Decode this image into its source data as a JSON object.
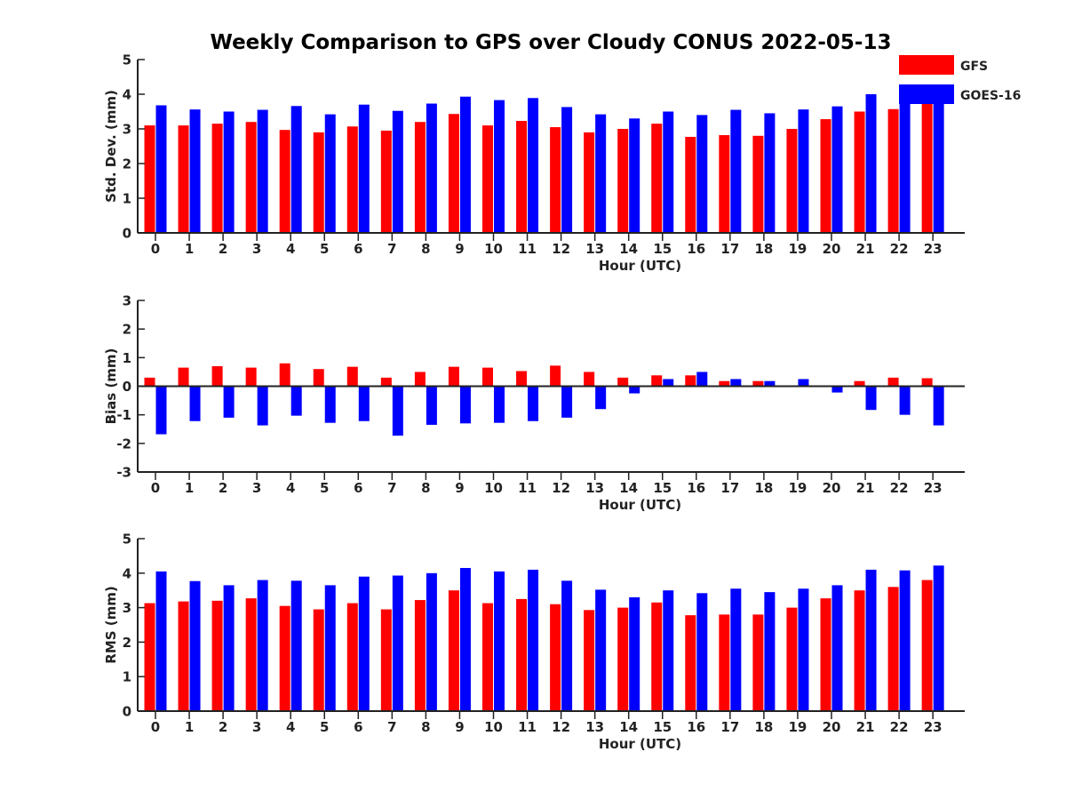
{
  "title": "Weekly Comparison to GPS over Cloudy CONUS 2022-05-13",
  "colors": {
    "gfs": "#ff0000",
    "goes": "#0000ff",
    "axis": "#222222"
  },
  "legend": {
    "placement": "top-right",
    "entries": [
      "GFS",
      "GOES-16"
    ]
  },
  "chart_data": [
    {
      "type": "bar",
      "ylabel": "Std. Dev. (mm)",
      "xlabel": "Hour (UTC)",
      "ylim": [
        0,
        5
      ],
      "yticks": [
        0,
        1,
        2,
        3,
        4,
        5
      ],
      "ytick_labels": [
        "0",
        "1",
        "2",
        "3",
        "4",
        "5"
      ],
      "categories": [
        "0",
        "1",
        "2",
        "3",
        "4",
        "5",
        "6",
        "7",
        "8",
        "9",
        "10",
        "11",
        "12",
        "13",
        "14",
        "15",
        "16",
        "17",
        "18",
        "19",
        "20",
        "21",
        "22",
        "23"
      ],
      "grid": false,
      "series": [
        {
          "name": "GFS",
          "values": [
            3.1,
            3.1,
            3.15,
            3.2,
            2.97,
            2.9,
            3.07,
            2.95,
            3.2,
            3.43,
            3.1,
            3.23,
            3.05,
            2.9,
            3.0,
            3.15,
            2.77,
            2.82,
            2.8,
            3.0,
            3.28,
            3.5,
            3.57,
            3.78
          ]
        },
        {
          "name": "GOES-16",
          "values": [
            3.68,
            3.56,
            3.5,
            3.55,
            3.66,
            3.42,
            3.7,
            3.52,
            3.73,
            3.93,
            3.83,
            3.89,
            3.63,
            3.42,
            3.3,
            3.5,
            3.4,
            3.55,
            3.45,
            3.56,
            3.65,
            4.0,
            3.93,
            4.07
          ]
        }
      ]
    },
    {
      "type": "bar",
      "ylabel": "Bias (mm)",
      "xlabel": "Hour (UTC)",
      "ylim": [
        -3,
        3
      ],
      "yticks": [
        -3,
        -2,
        -1,
        0,
        1,
        2,
        3
      ],
      "ytick_labels": [
        "-3",
        "-2",
        "-1",
        "0",
        "1",
        "2",
        "3"
      ],
      "categories": [
        "0",
        "1",
        "2",
        "3",
        "4",
        "5",
        "6",
        "7",
        "8",
        "9",
        "10",
        "11",
        "12",
        "13",
        "14",
        "15",
        "16",
        "17",
        "18",
        "19",
        "20",
        "21",
        "22",
        "23"
      ],
      "grid": false,
      "zero_line": true,
      "series": [
        {
          "name": "GFS",
          "values": [
            0.3,
            0.65,
            0.7,
            0.65,
            0.8,
            0.6,
            0.68,
            0.3,
            0.5,
            0.68,
            0.65,
            0.53,
            0.72,
            0.5,
            0.3,
            0.38,
            0.38,
            0.18,
            0.18,
            0.02,
            0.0,
            0.18,
            0.3,
            0.28
          ]
        },
        {
          "name": "GOES-16",
          "values": [
            -1.68,
            -1.22,
            -1.1,
            -1.37,
            -1.03,
            -1.28,
            -1.22,
            -1.73,
            -1.35,
            -1.3,
            -1.28,
            -1.22,
            -1.1,
            -0.8,
            -0.25,
            0.25,
            0.5,
            0.25,
            0.18,
            0.25,
            -0.22,
            -0.83,
            -1.0,
            -1.37
          ]
        }
      ]
    },
    {
      "type": "bar",
      "ylabel": "RMS (mm)",
      "xlabel": "Hour (UTC)",
      "ylim": [
        0,
        5
      ],
      "yticks": [
        0,
        1,
        2,
        3,
        4,
        5
      ],
      "ytick_labels": [
        "0",
        "1",
        "2",
        "3",
        "4",
        "5"
      ],
      "categories": [
        "0",
        "1",
        "2",
        "3",
        "4",
        "5",
        "6",
        "7",
        "8",
        "9",
        "10",
        "11",
        "12",
        "13",
        "14",
        "15",
        "16",
        "17",
        "18",
        "19",
        "20",
        "21",
        "22",
        "23"
      ],
      "grid": false,
      "series": [
        {
          "name": "GFS",
          "values": [
            3.13,
            3.18,
            3.2,
            3.27,
            3.05,
            2.95,
            3.13,
            2.95,
            3.22,
            3.5,
            3.13,
            3.25,
            3.1,
            2.93,
            3.0,
            3.15,
            2.78,
            2.8,
            2.8,
            3.0,
            3.27,
            3.5,
            3.6,
            3.8
          ]
        },
        {
          "name": "GOES-16",
          "values": [
            4.05,
            3.77,
            3.65,
            3.8,
            3.78,
            3.65,
            3.9,
            3.93,
            4.0,
            4.15,
            4.05,
            4.1,
            3.78,
            3.52,
            3.3,
            3.5,
            3.42,
            3.55,
            3.45,
            3.55,
            3.65,
            4.1,
            4.08,
            4.22
          ]
        }
      ]
    }
  ]
}
